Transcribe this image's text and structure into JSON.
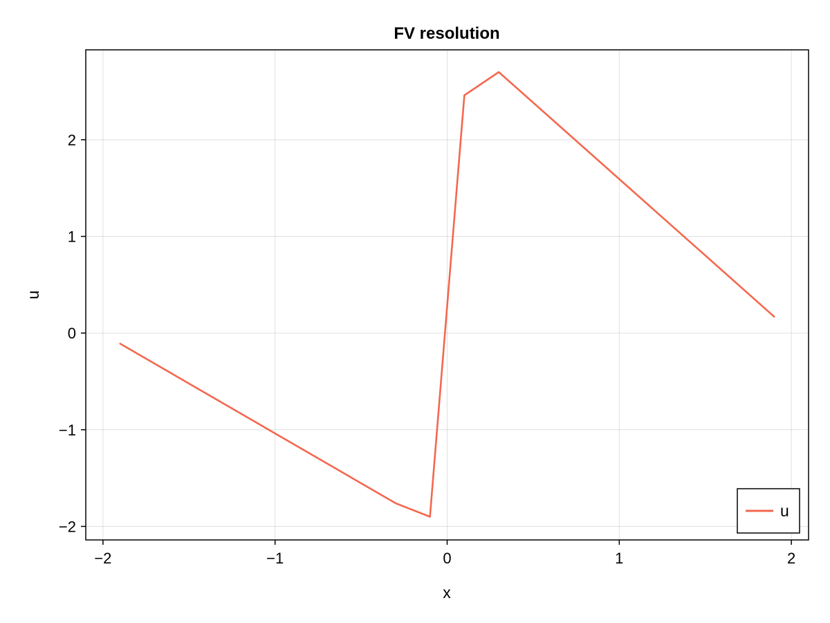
{
  "chart_data": {
    "type": "line",
    "title": "FV resolution",
    "xlabel": "x",
    "ylabel": "u",
    "xlim": [
      -2.1,
      2.1
    ],
    "ylim": [
      -2.14,
      2.93
    ],
    "xticks": [
      -2,
      -1,
      0,
      1,
      2
    ],
    "yticks": [
      -2,
      -1,
      0,
      1,
      2
    ],
    "xtick_labels": [
      "−2",
      "−1",
      "0",
      "1",
      "2"
    ],
    "ytick_labels": [
      "−2",
      "−1",
      "0",
      "1",
      "2"
    ],
    "grid": true,
    "legend_position": "bottom-right",
    "series": [
      {
        "name": "u",
        "color": "#f4674e",
        "x": [
          -1.9,
          -0.3,
          -0.1,
          0.1,
          0.3,
          1.9
        ],
        "y": [
          -0.11,
          -1.76,
          -1.9,
          2.46,
          2.7,
          0.17
        ]
      }
    ]
  }
}
